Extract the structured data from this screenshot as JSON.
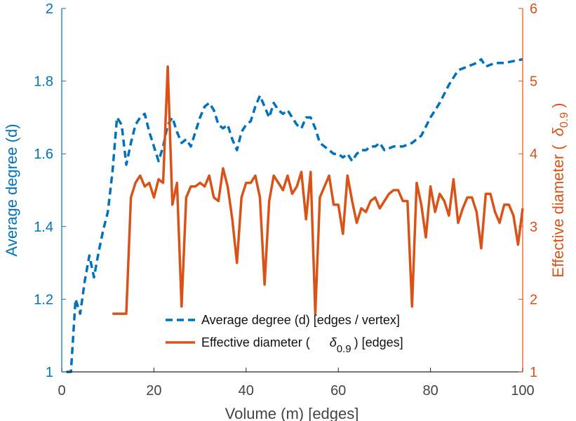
{
  "chart_data": {
    "type": "line",
    "xlabel": "Volume (m) [edges]",
    "ylabel_left": "Average degree (d)",
    "ylabel_right_prefix": "Effective diameter (",
    "ylabel_right_symbol": "δ",
    "ylabel_right_sub": "0.9",
    "ylabel_right_suffix": ")",
    "xlim": [
      0,
      100
    ],
    "ylim_left": [
      1,
      2
    ],
    "ylim_right": [
      1,
      6
    ],
    "xticks": [
      "0",
      "20",
      "40",
      "60",
      "80",
      "100"
    ],
    "yticks_left": [
      "1",
      "1.2",
      "1.4",
      "1.6",
      "1.8",
      "2"
    ],
    "yticks_right": [
      "1",
      "2",
      "3",
      "4",
      "5",
      "6"
    ],
    "grid": false,
    "legend_placement": "bottom-center",
    "colors": {
      "left": "#0072bd",
      "right": "#d95319"
    },
    "legend": {
      "entry1": "Average degree (d) [edges / vertex]",
      "entry2_prefix": "Effective diameter (",
      "entry2_symbol": "δ",
      "entry2_sub": "0.9",
      "entry2_suffix": ") [edges]"
    },
    "series": [
      {
        "name": "Average degree (d) [edges / vertex]",
        "axis": "left",
        "style": "dashed",
        "x": [
          1,
          2,
          3,
          4,
          5,
          6,
          7,
          8,
          9,
          10,
          11,
          12,
          13,
          14,
          15,
          16,
          17,
          18,
          19,
          20,
          21,
          22,
          23,
          24,
          25,
          26,
          27,
          28,
          29,
          30,
          31,
          32,
          33,
          34,
          35,
          36,
          37,
          38,
          39,
          40,
          41,
          42,
          43,
          44,
          45,
          46,
          47,
          48,
          49,
          50,
          51,
          52,
          53,
          54,
          55,
          56,
          57,
          58,
          59,
          60,
          61,
          62,
          63,
          64,
          65,
          66,
          67,
          68,
          69,
          70,
          72,
          74,
          76,
          78,
          80,
          82,
          84,
          86,
          88,
          90,
          91,
          92,
          94,
          96,
          100
        ],
        "y": [
          1.0,
          1.0,
          1.2,
          1.16,
          1.25,
          1.32,
          1.26,
          1.33,
          1.39,
          1.44,
          1.55,
          1.7,
          1.68,
          1.57,
          1.63,
          1.68,
          1.7,
          1.71,
          1.66,
          1.62,
          1.58,
          1.62,
          1.68,
          1.7,
          1.66,
          1.63,
          1.64,
          1.62,
          1.66,
          1.7,
          1.73,
          1.74,
          1.72,
          1.68,
          1.67,
          1.68,
          1.64,
          1.61,
          1.66,
          1.68,
          1.69,
          1.73,
          1.76,
          1.73,
          1.7,
          1.74,
          1.72,
          1.71,
          1.72,
          1.7,
          1.68,
          1.67,
          1.7,
          1.7,
          1.67,
          1.63,
          1.62,
          1.61,
          1.6,
          1.6,
          1.59,
          1.6,
          1.58,
          1.6,
          1.61,
          1.61,
          1.62,
          1.62,
          1.63,
          1.61,
          1.62,
          1.62,
          1.63,
          1.65,
          1.7,
          1.74,
          1.79,
          1.83,
          1.84,
          1.85,
          1.86,
          1.84,
          1.85,
          1.85,
          1.86
        ]
      },
      {
        "name": "Effective diameter (δ0.9) [edges]",
        "axis": "right",
        "style": "solid",
        "x": [
          11,
          12,
          13,
          14,
          15,
          16,
          17,
          18,
          19,
          20,
          21,
          22,
          23,
          24,
          25,
          26,
          27,
          28,
          29,
          30,
          31,
          32,
          33,
          34,
          35,
          36,
          37,
          38,
          39,
          40,
          41,
          42,
          43,
          44,
          45,
          46,
          47,
          48,
          49,
          50,
          51,
          52,
          53,
          54,
          55,
          56,
          57,
          58,
          59,
          60,
          61,
          62,
          63,
          64,
          65,
          66,
          67,
          68,
          69,
          70,
          71,
          72,
          73,
          74,
          75,
          76,
          77,
          78,
          79,
          80,
          81,
          82,
          83,
          84,
          85,
          86,
          87,
          88,
          89,
          90,
          91,
          92,
          93,
          94,
          95,
          96,
          97,
          98,
          99,
          100
        ],
        "y": [
          1.8,
          1.8,
          1.8,
          1.8,
          3.4,
          3.6,
          3.7,
          3.55,
          3.6,
          3.4,
          3.65,
          3.6,
          5.2,
          3.3,
          3.6,
          1.9,
          3.4,
          3.55,
          3.55,
          3.6,
          3.55,
          3.7,
          3.4,
          3.35,
          3.8,
          3.55,
          3.1,
          2.5,
          3.4,
          3.6,
          3.6,
          3.7,
          3.4,
          2.2,
          3.35,
          3.7,
          3.6,
          3.5,
          3.7,
          3.45,
          3.55,
          3.75,
          3.1,
          3.75,
          1.8,
          3.4,
          3.55,
          3.7,
          3.3,
          3.3,
          2.9,
          3.7,
          3.35,
          3.05,
          3.25,
          3.2,
          3.35,
          3.4,
          3.25,
          3.35,
          3.45,
          3.5,
          3.5,
          3.35,
          3.35,
          1.9,
          3.6,
          3.3,
          2.85,
          3.55,
          3.2,
          3.45,
          3.35,
          3.15,
          3.65,
          3.05,
          3.25,
          3.4,
          3.4,
          3.2,
          2.7,
          3.45,
          3.45,
          3.2,
          3.05,
          3.3,
          3.3,
          3.15,
          2.75,
          3.25
        ]
      }
    ]
  }
}
